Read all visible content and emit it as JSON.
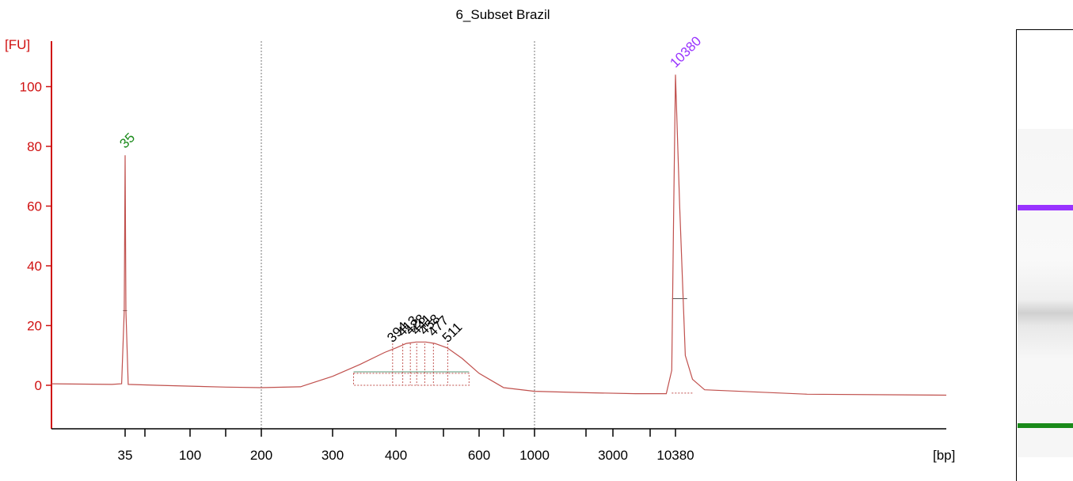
{
  "chart_data": {
    "type": "line",
    "title": "6_Subset Brazil",
    "ylabel": "[FU]",
    "xlabel": "[bp]",
    "y_ticks": [
      0,
      20,
      40,
      60,
      80,
      100
    ],
    "ylim": [
      -14,
      115
    ],
    "x_axis_scale": "nonlinear (size ladder)",
    "x_ticks": [
      "35",
      "100",
      "200",
      "300",
      "400",
      "600",
      "1000",
      "3000",
      "10380"
    ],
    "x_minor_ticks": [
      "50",
      "150",
      "500",
      "700",
      "2000",
      "7000"
    ],
    "grid_lines_at": [
      "200",
      "1000"
    ],
    "peak_labels": [
      {
        "text": "35",
        "value_fu": 77,
        "color": "#1a8a1a"
      },
      {
        "text": "10380",
        "value_fu": 104,
        "color": "#9933ff"
      },
      {
        "text": "394",
        "value_fu": 12,
        "color": "#000000"
      },
      {
        "text": "413",
        "value_fu": 14,
        "color": "#000000"
      },
      {
        "text": "428",
        "value_fu": 14.5,
        "color": "#000000"
      },
      {
        "text": "441",
        "value_fu": 14.5,
        "color": "#000000"
      },
      {
        "text": "458",
        "value_fu": 14.5,
        "color": "#000000"
      },
      {
        "text": "477",
        "value_fu": 14,
        "color": "#000000"
      },
      {
        "text": "511",
        "value_fu": 12,
        "color": "#000000"
      }
    ],
    "series": [
      {
        "color": "#c0504d",
        "points": [
          [
            "10",
            0.5
          ],
          [
            "28",
            0.3
          ],
          [
            "33",
            0.5
          ],
          [
            "34.5",
            25
          ],
          [
            "35",
            77
          ],
          [
            "35.5",
            25
          ],
          [
            "37",
            0.3
          ],
          [
            "60",
            0
          ],
          [
            "100",
            -0.3
          ],
          [
            "150",
            -0.6
          ],
          [
            "200",
            -0.8
          ],
          [
            "250",
            -0.5
          ],
          [
            "300",
            3
          ],
          [
            "340",
            7
          ],
          [
            "380",
            11
          ],
          [
            "400",
            12.5
          ],
          [
            "420",
            14
          ],
          [
            "440",
            14.5
          ],
          [
            "460",
            14.5
          ],
          [
            "480",
            14
          ],
          [
            "510",
            12.5
          ],
          [
            "550",
            9
          ],
          [
            "600",
            4
          ],
          [
            "700",
            -0.8
          ],
          [
            "1000",
            -2
          ],
          [
            "2000",
            -2.5
          ],
          [
            "5000",
            -2.8
          ],
          [
            "9000",
            -2.8
          ],
          [
            "9800",
            5
          ],
          [
            "10100",
            60
          ],
          [
            "10380",
            104
          ],
          [
            "10600",
            60
          ],
          [
            "10900",
            10
          ],
          [
            "11300",
            2
          ],
          [
            "12000",
            -1.5
          ],
          [
            "20000",
            -3
          ],
          [
            "40000",
            -3.3
          ]
        ]
      }
    ]
  },
  "gel": {
    "upper_marker_color": "#9933ff",
    "lower_marker_color": "#1a8a1a",
    "band_colors": {
      "smear": "#c8c8c8"
    }
  }
}
